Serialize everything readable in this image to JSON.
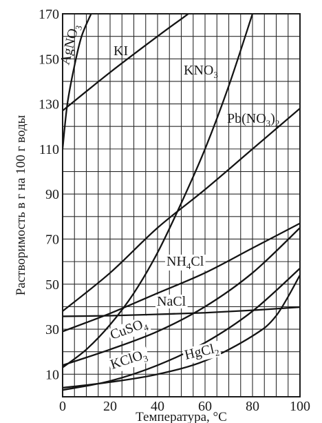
{
  "chart_data": {
    "type": "line",
    "title": "",
    "xlabel": "Температура, °C",
    "ylabel": "Растворимость в г на 100 г воды",
    "xlim": [
      0,
      100
    ],
    "ylim": [
      0,
      170
    ],
    "x_ticks": [
      0,
      20,
      40,
      60,
      80,
      100
    ],
    "y_ticks": [
      10,
      30,
      50,
      70,
      90,
      110,
      130,
      150,
      170
    ],
    "grid": true,
    "series": [
      {
        "name": "AgNO3",
        "label_main": "AgNO",
        "label_sub": "3",
        "points": [
          [
            0,
            110
          ],
          [
            2,
            130
          ],
          [
            5,
            147
          ],
          [
            8,
            160
          ],
          [
            12,
            170
          ]
        ]
      },
      {
        "name": "KI",
        "label_main": "KI",
        "label_sub": "",
        "points": [
          [
            0,
            127
          ],
          [
            20,
            144
          ],
          [
            40,
            160
          ],
          [
            53,
            170
          ]
        ]
      },
      {
        "name": "KNO3",
        "label_main": "KNO",
        "label_sub": "3",
        "points": [
          [
            0,
            13
          ],
          [
            10,
            21
          ],
          [
            20,
            32
          ],
          [
            30,
            46
          ],
          [
            40,
            64
          ],
          [
            50,
            86
          ],
          [
            60,
            110
          ],
          [
            70,
            138
          ],
          [
            80,
            170
          ]
        ]
      },
      {
        "name": "Pb(NO3)2",
        "label_main": "Pb(NO",
        "label_sub": "3",
        "label_tail": ")",
        "label_sub2": "2",
        "points": [
          [
            0,
            38
          ],
          [
            20,
            55
          ],
          [
            40,
            75
          ],
          [
            60,
            92
          ],
          [
            80,
            110
          ],
          [
            100,
            128
          ]
        ]
      },
      {
        "name": "NH4Cl",
        "label_main": "NH",
        "label_sub": "4",
        "label_tail": "Cl",
        "points": [
          [
            0,
            29
          ],
          [
            20,
            37
          ],
          [
            40,
            46
          ],
          [
            60,
            55
          ],
          [
            80,
            66
          ],
          [
            100,
            77
          ]
        ]
      },
      {
        "name": "NaCl",
        "label_main": "NaCl",
        "label_sub": "",
        "points": [
          [
            0,
            35.7
          ],
          [
            20,
            36
          ],
          [
            40,
            36.6
          ],
          [
            60,
            37.3
          ],
          [
            80,
            38.4
          ],
          [
            100,
            39.8
          ]
        ]
      },
      {
        "name": "CuSO4",
        "label_main": "CuSO",
        "label_sub": "4",
        "points": [
          [
            0,
            14
          ],
          [
            20,
            21
          ],
          [
            40,
            29
          ],
          [
            60,
            40
          ],
          [
            80,
            55
          ],
          [
            100,
            75
          ]
        ]
      },
      {
        "name": "KClO3",
        "label_main": "KClO",
        "label_sub": "3",
        "points": [
          [
            0,
            3
          ],
          [
            20,
            7
          ],
          [
            40,
            14
          ],
          [
            60,
            24
          ],
          [
            80,
            38
          ],
          [
            100,
            57
          ]
        ]
      },
      {
        "name": "HgCl2",
        "label_main": "HgCl",
        "label_sub": "2",
        "points": [
          [
            0,
            4
          ],
          [
            20,
            6.5
          ],
          [
            40,
            10
          ],
          [
            60,
            16
          ],
          [
            80,
            27
          ],
          [
            90,
            36
          ],
          [
            100,
            54
          ]
        ]
      }
    ]
  }
}
